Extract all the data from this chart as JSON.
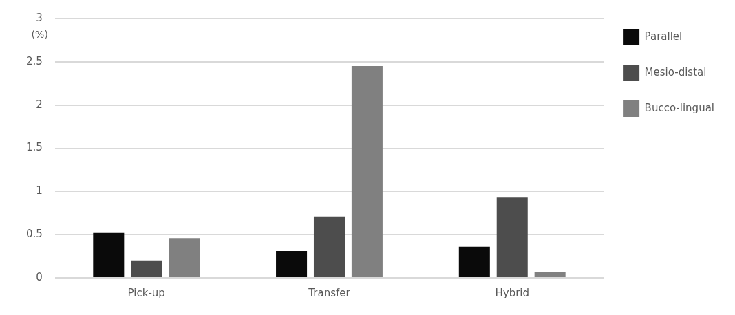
{
  "chart_data": {
    "type": "bar",
    "ylabel": "(%)",
    "categories": [
      "Pick-up",
      "Transfer",
      "Hybrid"
    ],
    "series": [
      {
        "name": "Parallel",
        "color": "#0a0a0a",
        "values": [
          0.52,
          0.31,
          0.36
        ]
      },
      {
        "name": "Mesio-distal",
        "color": "#4d4d4d",
        "values": [
          0.2,
          0.71,
          0.93
        ]
      },
      {
        "name": "Bucco-lingual",
        "color": "#808080",
        "values": [
          0.46,
          2.45,
          0.07
        ]
      }
    ],
    "ylim": [
      0,
      3
    ],
    "yticks": [
      0,
      0.5,
      1,
      1.5,
      2,
      2.5,
      3
    ],
    "grid": "y",
    "legend": "top right"
  }
}
